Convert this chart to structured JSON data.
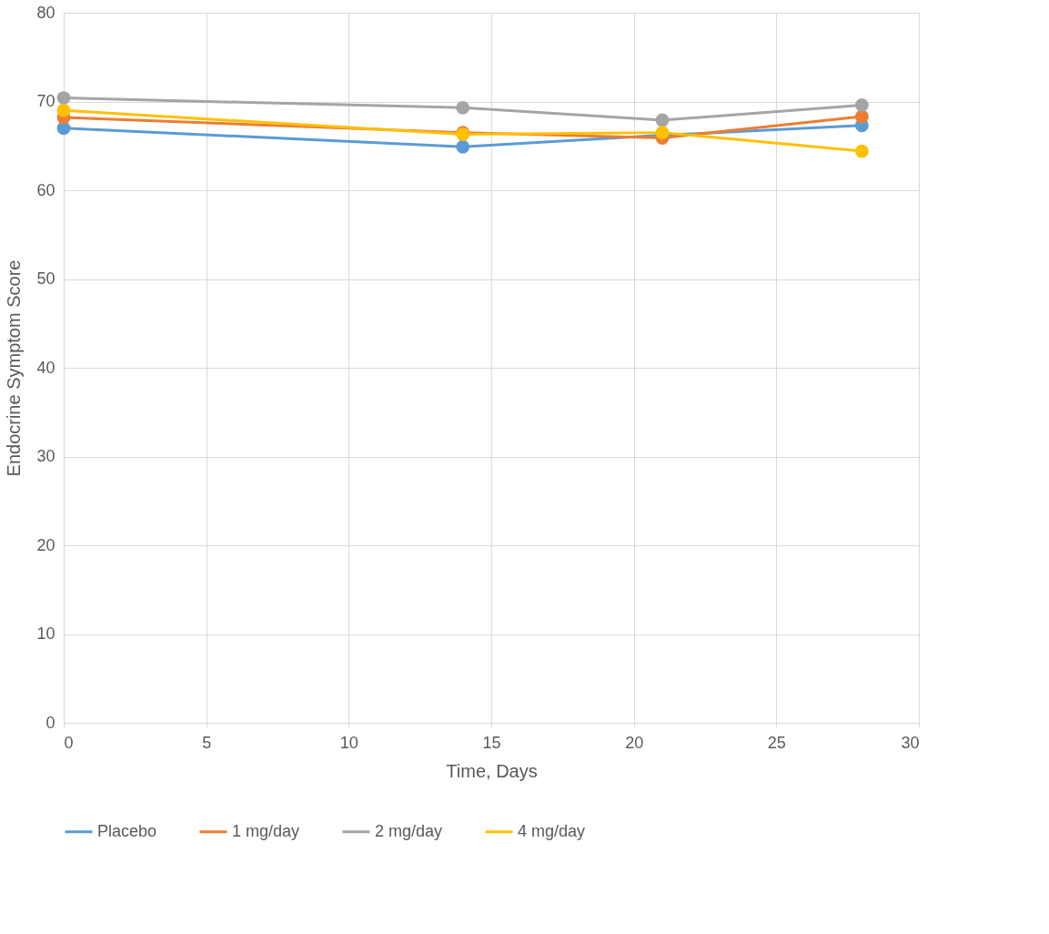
{
  "chart_data": {
    "type": "line",
    "xlabel": "Time, Days",
    "ylabel": "Endocrine Symptom Score",
    "xlim": [
      0,
      30
    ],
    "xticks": [
      0,
      5,
      10,
      15,
      20,
      25,
      30
    ],
    "ylim": [
      0,
      80
    ],
    "yticks": [
      0,
      10,
      20,
      30,
      40,
      50,
      60,
      70,
      80
    ],
    "grid": true,
    "legend": "bottom",
    "marker": "circle",
    "line_style": "solid",
    "series": [
      {
        "name": "Placebo",
        "color": "#5b9bd5",
        "x": [
          0,
          14,
          21,
          28
        ],
        "values": [
          67.0,
          64.9,
          66.2,
          67.3
        ]
      },
      {
        "name": "1 mg/day",
        "color": "#ed7d31",
        "x": [
          0,
          14,
          21,
          28
        ],
        "values": [
          68.2,
          66.5,
          65.9,
          68.3
        ]
      },
      {
        "name": "2 mg/day",
        "color": "#a5a5a5",
        "x": [
          0,
          14,
          21,
          28
        ],
        "values": [
          70.4,
          69.3,
          67.9,
          69.6
        ]
      },
      {
        "name": "4 mg/day",
        "color": "#ffc000",
        "x": [
          0,
          14,
          21,
          28
        ],
        "values": [
          69.0,
          66.3,
          66.5,
          64.4
        ]
      }
    ]
  }
}
